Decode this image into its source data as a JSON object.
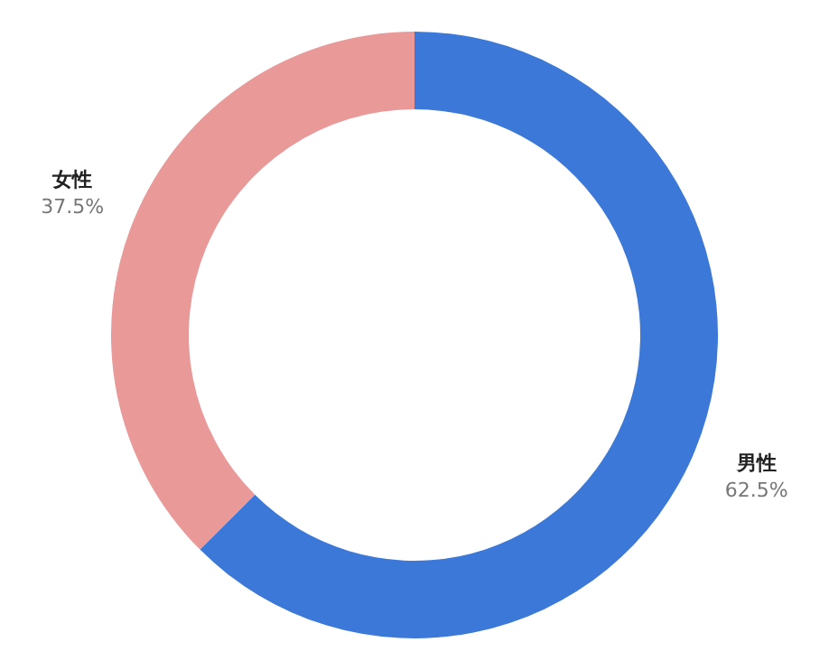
{
  "chart_data": {
    "type": "donut",
    "categories": [
      "男性",
      "女性"
    ],
    "values": [
      62.5,
      37.5
    ],
    "value_labels": [
      "62.5%",
      "37.5%"
    ],
    "colors": [
      "#3c78d8",
      "#ea9999"
    ],
    "legend": false
  }
}
